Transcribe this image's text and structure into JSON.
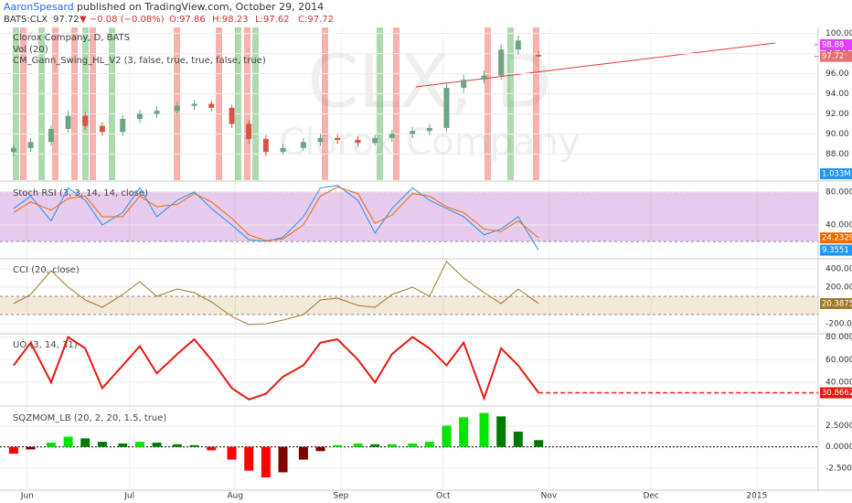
{
  "header": {
    "author": "AaronSpesard",
    "published": "published on TradingView.com, October 29, 2014",
    "symbol": "BATS:CLX",
    "last": "97.72",
    "change": "▼ −0.08 (−0.08%)",
    "ohlc": [
      "O:97.86",
      "H:98.23",
      "L:97.62",
      "C:97.72"
    ],
    "watermark_symbol": "CLX, D",
    "watermark_name": "Clorox Company"
  },
  "chart_data": [
    {
      "type": "candlestick",
      "title": "Clorox Company, D, BATS",
      "subtitles": [
        "Vol (20)",
        "CM_Gann_Swing_HL_V2 (3, false, true, true, false, true)"
      ],
      "x": [
        2,
        7,
        13,
        18,
        23,
        28,
        34,
        39,
        44,
        50,
        55,
        60,
        66,
        71,
        76,
        81,
        87,
        92,
        97,
        103,
        108,
        113,
        119,
        124,
        129,
        134,
        140,
        145,
        150,
        156
      ],
      "xlim": [
        -2,
        238
      ],
      "ylim": [
        85.4,
        100.6
      ],
      "yticks": [
        {
          "value": 88,
          "label": "88.00"
        },
        {
          "value": 90,
          "label": "90.00"
        },
        {
          "value": 92,
          "label": "92.00"
        },
        {
          "value": 94,
          "label": "94.00"
        },
        {
          "value": 96,
          "label": "96.00"
        },
        {
          "value": 98,
          "label": "98.00"
        },
        {
          "value": 100,
          "label": "100.00"
        }
      ],
      "open": [
        88.2,
        88.6,
        89.2,
        90.5,
        91.8,
        90.8,
        90.2,
        91.5,
        92.0,
        92.3,
        92.8,
        93.0,
        92.6,
        91.0,
        89.5,
        88.2,
        88.6,
        89.2,
        89.6,
        89.4,
        89.1,
        89.6,
        90.0,
        90.3,
        90.6,
        94.6,
        95.4,
        95.8,
        98.4,
        97.86
      ],
      "high": [
        88.9,
        89.6,
        90.9,
        92.3,
        92.2,
        91.2,
        91.9,
        92.4,
        92.8,
        93.2,
        93.4,
        93.3,
        92.9,
        91.4,
        89.9,
        89.0,
        89.6,
        90.0,
        90.0,
        89.8,
        89.9,
        90.4,
        90.7,
        91.0,
        95.0,
        95.9,
        96.3,
        98.9,
        99.8,
        98.23
      ],
      "low": [
        87.8,
        88.2,
        88.8,
        90.1,
        90.4,
        89.8,
        89.8,
        91.1,
        91.6,
        91.9,
        92.4,
        92.2,
        90.6,
        89.0,
        87.8,
        87.9,
        88.3,
        88.8,
        89.0,
        88.7,
        88.8,
        89.2,
        89.6,
        89.9,
        90.2,
        94.1,
        95.0,
        95.4,
        97.9,
        97.62
      ],
      "close": [
        88.6,
        89.2,
        90.5,
        91.8,
        90.8,
        90.2,
        91.5,
        92.0,
        92.3,
        92.8,
        93.0,
        92.6,
        91.0,
        89.5,
        88.2,
        88.6,
        89.2,
        89.6,
        89.4,
        89.1,
        89.6,
        90.0,
        90.3,
        90.6,
        94.6,
        95.4,
        95.8,
        98.4,
        99.3,
        97.72
      ],
      "up_color": "#6ba583",
      "down_color": "#d75442",
      "price_labels": [
        {
          "value": 98.88,
          "label": "98.88",
          "color": "#e040fb"
        },
        {
          "value": 97.72,
          "label": "97.72",
          "color": "#e57373"
        }
      ],
      "volume_label": {
        "value": 1033000,
        "label": "1.033M",
        "color": "#2196f3"
      }
    },
    {
      "type": "line",
      "title": "Stoch RSI (3, 3, 14, 14, close)",
      "x": [
        2,
        7,
        13,
        18,
        23,
        28,
        34,
        39,
        44,
        50,
        55,
        60,
        66,
        71,
        76,
        81,
        87,
        92,
        97,
        103,
        108,
        113,
        119,
        124,
        129,
        134,
        140,
        145,
        150,
        156
      ],
      "xlim": [
        -2,
        238
      ],
      "ylim": [
        0,
        91
      ],
      "band": [
        20,
        80
      ],
      "band_color": "#e1bee7",
      "yticks": [
        {
          "value": 40,
          "label": "40.0000"
        },
        {
          "value": 80,
          "label": "80.0000"
        }
      ],
      "series": [
        {
          "color": "#2196f3",
          "values": [
            60,
            75,
            45,
            85,
            70,
            40,
            55,
            85,
            50,
            70,
            80,
            60,
            40,
            22,
            20,
            25,
            50,
            85,
            88,
            70,
            30,
            60,
            85,
            70,
            60,
            50,
            28,
            35,
            50,
            9.3551
          ],
          "last_label": "9.3551"
        },
        {
          "color": "#ef6c00",
          "values": [
            55,
            68,
            58,
            72,
            75,
            50,
            50,
            75,
            62,
            65,
            78,
            68,
            48,
            28,
            21,
            23,
            40,
            75,
            86,
            78,
            42,
            52,
            78,
            75,
            62,
            55,
            35,
            32,
            45,
            24.2329
          ],
          "last_label": "24.2329"
        }
      ]
    },
    {
      "type": "line",
      "title": "CCI (20, close)",
      "x": [
        2,
        7,
        13,
        18,
        23,
        28,
        34,
        39,
        44,
        50,
        55,
        60,
        66,
        71,
        76,
        81,
        87,
        92,
        97,
        103,
        108,
        113,
        119,
        124,
        129,
        134,
        140,
        145,
        150,
        156
      ],
      "xlim": [
        -2,
        238
      ],
      "ylim": [
        -300,
        500
      ],
      "band": [
        -100,
        100
      ],
      "band_color": "#efe3cf",
      "yticks": [
        {
          "value": -200,
          "label": "-200.0000"
        },
        {
          "value": 200,
          "label": "200.0000"
        },
        {
          "value": 400,
          "label": "400.0000"
        }
      ],
      "series": [
        {
          "color": "#a07a2a",
          "values": [
            20,
            120,
            380,
            200,
            60,
            -20,
            120,
            260,
            100,
            180,
            140,
            40,
            -120,
            -210,
            -200,
            -160,
            -100,
            60,
            80,
            0,
            -20,
            120,
            200,
            100,
            480,
            300,
            140,
            20,
            180,
            20.3875
          ],
          "last_label": "20.3875"
        }
      ]
    },
    {
      "type": "line",
      "title": "UO (3, 14, 31)",
      "last_line": true,
      "x": [
        2,
        7,
        13,
        18,
        23,
        28,
        34,
        39,
        44,
        50,
        55,
        60,
        66,
        71,
        76,
        81,
        87,
        92,
        97,
        103,
        108,
        113,
        119,
        124,
        129,
        134,
        140,
        145,
        150,
        156
      ],
      "xlim": [
        -2,
        238
      ],
      "ylim": [
        20,
        82
      ],
      "yticks": [
        {
          "value": 40,
          "label": "40.0000"
        },
        {
          "value": 60,
          "label": "60.0000"
        },
        {
          "value": 80,
          "label": "80.0000"
        }
      ],
      "series": [
        {
          "color": "#e8190f",
          "values": [
            55,
            75,
            40,
            80,
            70,
            35,
            55,
            72,
            48,
            65,
            78,
            60,
            35,
            25,
            30,
            45,
            55,
            75,
            78,
            60,
            40,
            65,
            80,
            70,
            55,
            75,
            26,
            70,
            55,
            30.8662
          ],
          "last_label": "30.8662"
        }
      ]
    },
    {
      "type": "bar",
      "title": "SQZMOM_LB (20, 2, 20, 1.5, true)",
      "x": [
        2,
        7,
        13,
        18,
        23,
        28,
        34,
        39,
        44,
        50,
        55,
        60,
        66,
        71,
        76,
        81,
        87,
        92,
        97,
        103,
        108,
        113,
        119,
        124,
        129,
        134,
        140,
        145,
        150,
        156
      ],
      "xlim": [
        -2,
        238
      ],
      "ylim": [
        -5,
        4.6
      ],
      "yticks": [
        {
          "value": -2.5,
          "label": "-2.5000"
        },
        {
          "value": 0,
          "label": "0.0000"
        },
        {
          "value": 2.5,
          "label": "2.5000"
        }
      ],
      "values": [
        -0.8,
        -0.3,
        0.5,
        1.2,
        1.0,
        0.6,
        0.4,
        0.6,
        0.5,
        0.3,
        0.2,
        -0.4,
        -1.5,
        -2.8,
        -3.6,
        -3.0,
        -1.5,
        -0.5,
        0.2,
        0.4,
        0.3,
        0.3,
        0.4,
        0.6,
        2.5,
        3.5,
        4.0,
        3.6,
        1.8,
        0.8
      ],
      "colors": {
        "rising_up": "#00e600",
        "falling_up": "#007a00",
        "falling_down": "#ff0000",
        "rising_down": "#800000"
      },
      "xticks": [
        {
          "value": 6,
          "label": "Jun"
        },
        {
          "value": 36,
          "label": "Jul"
        },
        {
          "value": 67,
          "label": "Aug"
        },
        {
          "value": 98,
          "label": "Sep"
        },
        {
          "value": 128,
          "label": "Oct"
        },
        {
          "value": 159,
          "label": "Nov"
        },
        {
          "value": 189,
          "label": "Dec"
        },
        {
          "value": 220,
          "label": "2015"
        }
      ]
    }
  ]
}
